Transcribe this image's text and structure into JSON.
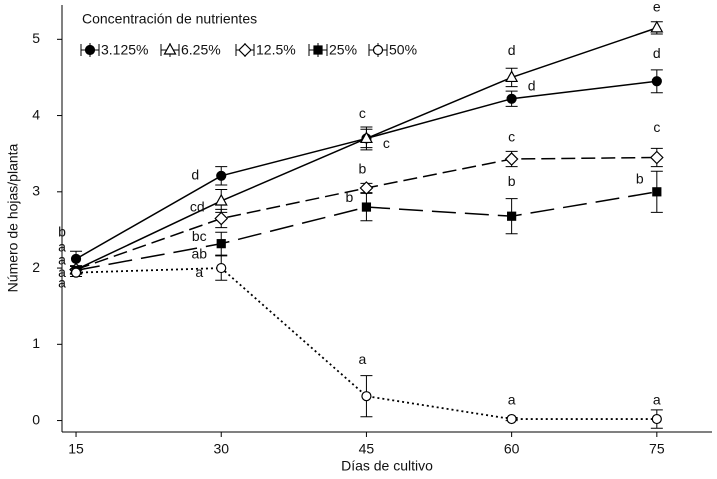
{
  "chart_data": {
    "type": "line",
    "legend_title": "Concentración de nutrientes",
    "x_label": "Días de cultivo",
    "y_label": "Número de hojas/planta",
    "x": [
      15,
      30,
      45,
      60,
      75
    ],
    "xlim": [
      13.55,
      80.7
    ],
    "xticks": [
      15,
      30,
      45,
      60,
      75
    ],
    "ylim": [
      -0.15,
      5.45
    ],
    "yticks": [
      0,
      1,
      2,
      3,
      4,
      5
    ],
    "color": "#000000",
    "series": [
      {
        "name": "3.125%",
        "marker": "filled-circle",
        "dash": "solid",
        "values": [
          2.12,
          3.21,
          3.7,
          4.22,
          4.45
        ],
        "errors": [
          0.1,
          0.12,
          0.15,
          0.1,
          0.15
        ],
        "letters": [
          "b",
          "d",
          "c",
          "d",
          "d"
        ]
      },
      {
        "name": "6.25%",
        "marker": "open-triangle",
        "dash": "solid",
        "values": [
          1.98,
          2.88,
          3.7,
          4.5,
          5.15
        ],
        "errors": [
          0.05,
          0.15,
          0.12,
          0.12,
          0.08
        ],
        "letters": [
          "a",
          "cd",
          "c",
          "d",
          "e"
        ]
      },
      {
        "name": "12.5%",
        "marker": "open-diamond",
        "dash": "dashed",
        "values": [
          1.98,
          2.65,
          3.05,
          3.43,
          3.45
        ],
        "errors": [
          0.05,
          0.12,
          0.06,
          0.1,
          0.12
        ],
        "letters": [
          "a",
          "bc",
          "b",
          "c",
          "c"
        ]
      },
      {
        "name": "25%",
        "marker": "filled-square",
        "dash": "long-dashed",
        "values": [
          1.97,
          2.32,
          2.8,
          2.68,
          3.0
        ],
        "errors": [
          0.05,
          0.15,
          0.18,
          0.23,
          0.27
        ],
        "letters": [
          "a",
          "ab",
          "b",
          "b",
          "b"
        ]
      },
      {
        "name": "50%",
        "marker": "open-circle",
        "dash": "dotted",
        "values": [
          1.94,
          2.0,
          0.32,
          0.02,
          0.02
        ],
        "errors": [
          0.05,
          0.16,
          0.27,
          0.02,
          0.12
        ],
        "letters": [
          "a",
          "a",
          "a",
          "a",
          "a"
        ]
      }
    ]
  }
}
